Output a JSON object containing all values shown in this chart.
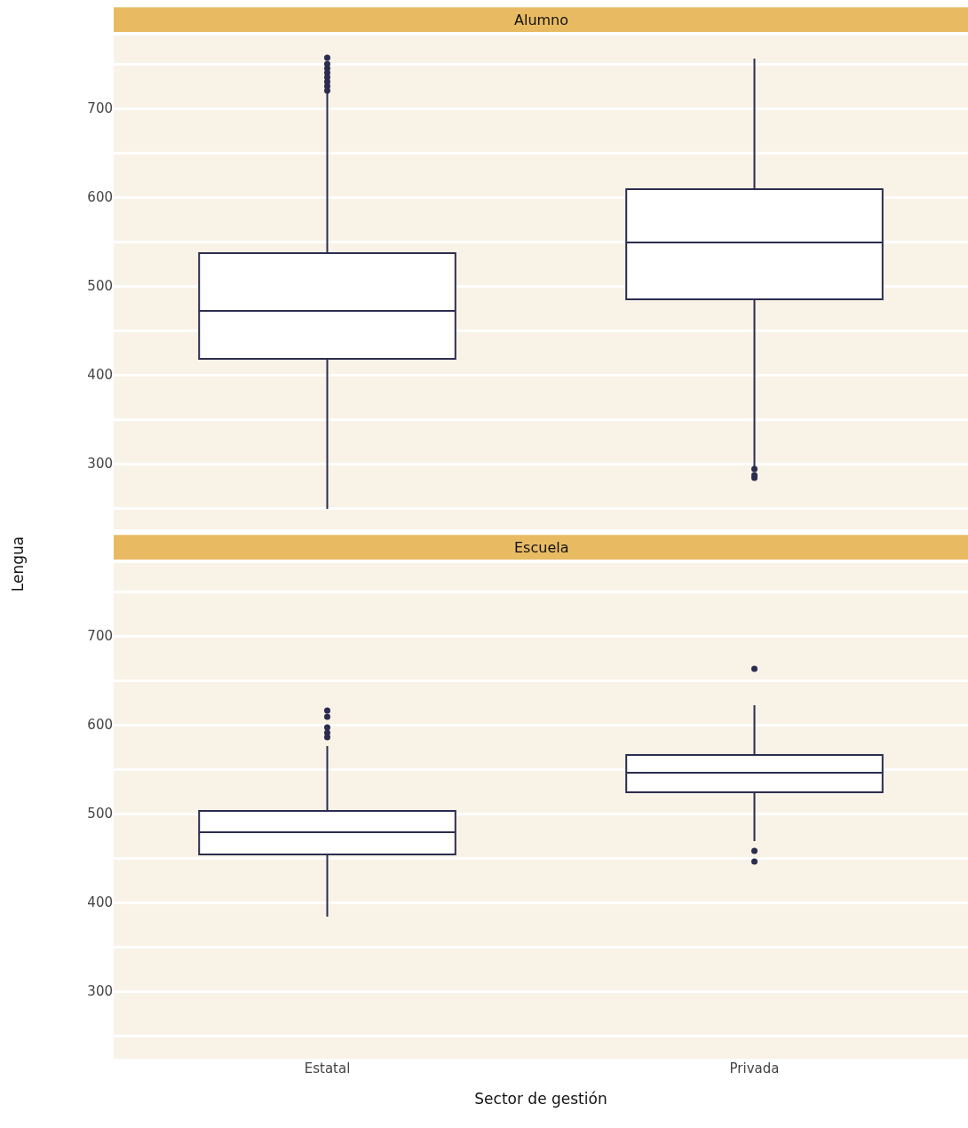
{
  "chart_data": [
    {
      "type": "box",
      "title": "Alumno",
      "ylabel": "Lengua",
      "categories": [
        null,
        null
      ],
      "color": "#2b2d4f",
      "boxes": [
        {
          "low": 249,
          "q1": 418,
          "median": 472,
          "q3": 537,
          "high": 717,
          "outliers": [
            720,
            725,
            730,
            735,
            740,
            745,
            750,
            757
          ]
        },
        {
          "low": 297,
          "q1": 485,
          "median": 549,
          "q3": 609,
          "high": 756,
          "outliers": [
            294,
            287,
            284
          ]
        }
      ],
      "ylim": [
        224,
        782
      ],
      "yticks": [
        {
          "value": 250,
          "label": null
        },
        300,
        {
          "value": 350,
          "label": null
        },
        400,
        {
          "value": 450,
          "label": null
        },
        500,
        {
          "value": 550,
          "label": null
        },
        600,
        {
          "value": 650,
          "label": null
        },
        700,
        {
          "value": 750,
          "label": null
        }
      ],
      "grid": "y",
      "tick_labels": "y"
    },
    {
      "type": "box",
      "title": "Escuela",
      "xlabel": "Sector de gestión",
      "categories": [
        "Estatal",
        "Privada"
      ],
      "color": "#2b2d4f",
      "boxes": [
        {
          "low": 384,
          "q1": 454,
          "median": 479,
          "q3": 503,
          "high": 576,
          "outliers": [
            586,
            591,
            597,
            609,
            616
          ]
        },
        {
          "low": 469,
          "q1": 524,
          "median": 546,
          "q3": 566,
          "high": 622,
          "outliers": [
            663,
            458,
            446
          ]
        }
      ],
      "ylim": [
        224,
        782
      ],
      "yticks": [
        {
          "value": 250,
          "label": null
        },
        300,
        {
          "value": 350,
          "label": null
        },
        400,
        {
          "value": 450,
          "label": null
        },
        500,
        {
          "value": 550,
          "label": null
        },
        600,
        {
          "value": 650,
          "label": null
        },
        700,
        {
          "value": 750,
          "label": null
        }
      ],
      "grid": "y"
    }
  ]
}
